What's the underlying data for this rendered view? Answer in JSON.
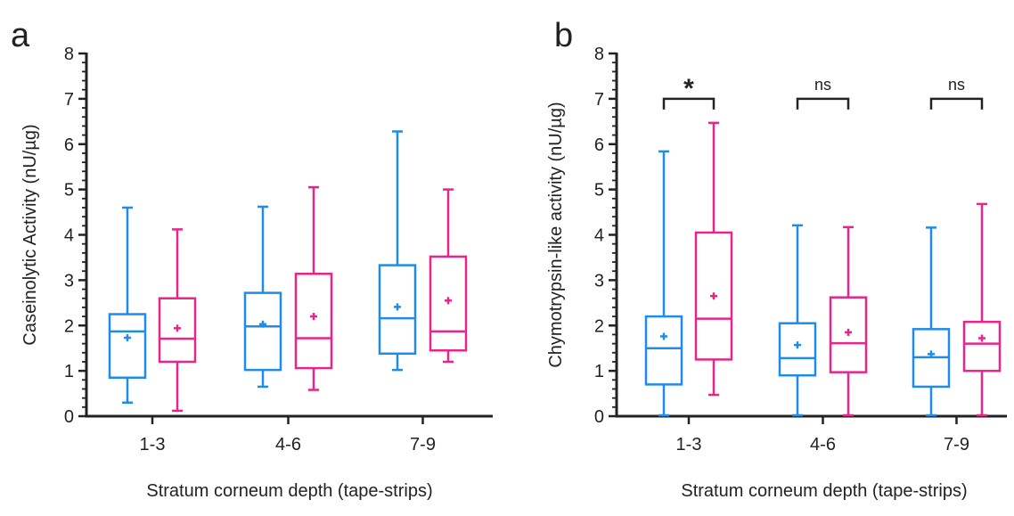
{
  "colors": {
    "group1": "#1f8ce8",
    "group2": "#e8258a",
    "axis": "#222222"
  },
  "chart_data": [
    {
      "type": "box",
      "panel_label": "a",
      "xlabel": "Stratum corneum depth (tape-strips)",
      "ylabel": "Caseinolytic Activity (nU/µg)",
      "ylim": [
        0,
        8
      ],
      "yticks": [
        0,
        1,
        2,
        3,
        4,
        5,
        6,
        7,
        8
      ],
      "categories": [
        "1-3",
        "4-6",
        "7-9"
      ],
      "series": [
        {
          "color": "#1f8ce8",
          "boxes": [
            {
              "min": 0.3,
              "q1": 0.85,
              "median": 1.87,
              "q3": 2.25,
              "max": 4.6,
              "mean": 1.73
            },
            {
              "min": 0.65,
              "q1": 1.02,
              "median": 1.98,
              "q3": 2.72,
              "max": 4.62,
              "mean": 2.03
            },
            {
              "min": 1.02,
              "q1": 1.38,
              "median": 2.16,
              "q3": 3.33,
              "max": 6.28,
              "mean": 2.41
            }
          ]
        },
        {
          "color": "#e8258a",
          "boxes": [
            {
              "min": 0.12,
              "q1": 1.2,
              "median": 1.71,
              "q3": 2.6,
              "max": 4.12,
              "mean": 1.94
            },
            {
              "min": 0.58,
              "q1": 1.06,
              "median": 1.72,
              "q3": 3.14,
              "max": 5.05,
              "mean": 2.2
            },
            {
              "min": 1.2,
              "q1": 1.45,
              "median": 1.87,
              "q3": 3.52,
              "max": 5.0,
              "mean": 2.55
            }
          ]
        }
      ],
      "annotations": []
    },
    {
      "type": "box",
      "panel_label": "b",
      "xlabel": "Stratum corneum depth (tape-strips)",
      "ylabel": "Chymotrypsin-like activity (nU/µg)",
      "ylim": [
        0,
        8
      ],
      "yticks": [
        0,
        1,
        2,
        3,
        4,
        5,
        6,
        7,
        8
      ],
      "categories": [
        "1-3",
        "4-6",
        "7-9"
      ],
      "series": [
        {
          "color": "#1f8ce8",
          "boxes": [
            {
              "min": 0.02,
              "q1": 0.7,
              "median": 1.5,
              "q3": 2.2,
              "max": 5.84,
              "mean": 1.76
            },
            {
              "min": 0.02,
              "q1": 0.9,
              "median": 1.28,
              "q3": 2.05,
              "max": 4.21,
              "mean": 1.57
            },
            {
              "min": 0.02,
              "q1": 0.65,
              "median": 1.3,
              "q3": 1.92,
              "max": 4.16,
              "mean": 1.37
            }
          ]
        },
        {
          "color": "#e8258a",
          "boxes": [
            {
              "min": 0.47,
              "q1": 1.25,
              "median": 2.15,
              "q3": 4.05,
              "max": 6.47,
              "mean": 2.65
            },
            {
              "min": 0.02,
              "q1": 0.97,
              "median": 1.61,
              "q3": 2.62,
              "max": 4.17,
              "mean": 1.85
            },
            {
              "min": 0.02,
              "q1": 1.0,
              "median": 1.6,
              "q3": 2.08,
              "max": 4.68,
              "mean": 1.72
            }
          ]
        }
      ],
      "annotations": [
        {
          "category": "1-3",
          "label": "*",
          "y": 7.0
        },
        {
          "category": "4-6",
          "label": "ns",
          "y": 7.0
        },
        {
          "category": "7-9",
          "label": "ns",
          "y": 7.0
        }
      ]
    }
  ]
}
